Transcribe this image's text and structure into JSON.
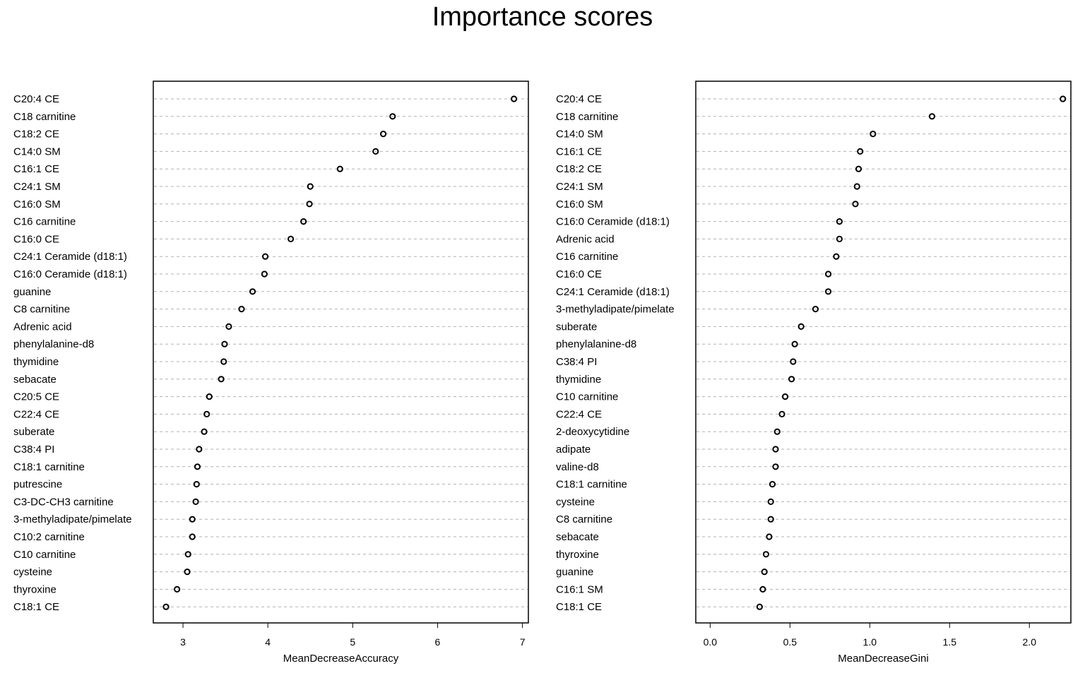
{
  "title": "Importance scores",
  "chart_data": [
    {
      "type": "scatter",
      "subtype": "dotchart",
      "xlabel": "MeanDecreaseAccuracy",
      "xlim": [
        2.65,
        7.07
      ],
      "xticks": [
        3,
        4,
        5,
        6,
        7
      ],
      "categories": [
        "C20:4 CE",
        "C18 carnitine",
        "C18:2 CE",
        "C14:0 SM",
        "C16:1 CE",
        "C24:1 SM",
        "C16:0 SM",
        "C16 carnitine",
        "C16:0 CE",
        "C24:1 Ceramide (d18:1)",
        "C16:0 Ceramide (d18:1)",
        "guanine",
        "C8 carnitine",
        "Adrenic acid",
        "phenylalanine-d8",
        "thymidine",
        "sebacate",
        "C20:5 CE",
        "C22:4 CE",
        "suberate",
        "C38:4 PI",
        "C18:1 carnitine",
        "putrescine",
        "C3-DC-CH3 carnitine",
        "3-methyladipate/pimelate",
        "C10:2 carnitine",
        "C10 carnitine",
        "cysteine",
        "thyroxine",
        "C18:1 CE"
      ],
      "values": [
        6.9,
        5.47,
        5.36,
        5.27,
        4.85,
        4.5,
        4.49,
        4.42,
        4.27,
        3.97,
        3.96,
        3.82,
        3.69,
        3.54,
        3.49,
        3.48,
        3.45,
        3.31,
        3.28,
        3.25,
        3.19,
        3.17,
        3.16,
        3.15,
        3.11,
        3.11,
        3.06,
        3.05,
        2.93,
        2.8
      ],
      "grid": "dashed horizontal lines"
    },
    {
      "type": "scatter",
      "subtype": "dotchart",
      "xlabel": "MeanDecreaseGini",
      "xlim": [
        -0.09,
        2.26
      ],
      "xticks": [
        "0.0",
        "0.5",
        "1.0",
        "1.5",
        "2.0"
      ],
      "categories": [
        "C20:4 CE",
        "C18 carnitine",
        "C14:0 SM",
        "C16:1 CE",
        "C18:2 CE",
        "C24:1 SM",
        "C16:0 SM",
        "C16:0 Ceramide (d18:1)",
        "Adrenic acid",
        "C16 carnitine",
        "C16:0 CE",
        "C24:1 Ceramide (d18:1)",
        "3-methyladipate/pimelate",
        "suberate",
        "phenylalanine-d8",
        "C38:4 PI",
        "thymidine",
        "C10 carnitine",
        "C22:4 CE",
        "2-deoxycytidine",
        "adipate",
        "valine-d8",
        "C18:1 carnitine",
        "cysteine",
        "C8 carnitine",
        "sebacate",
        "thyroxine",
        "guanine",
        "C16:1 SM",
        "C18:1 CE"
      ],
      "values": [
        2.21,
        1.39,
        1.02,
        0.94,
        0.93,
        0.92,
        0.91,
        0.81,
        0.81,
        0.79,
        0.74,
        0.74,
        0.66,
        0.57,
        0.53,
        0.52,
        0.51,
        0.47,
        0.45,
        0.42,
        0.41,
        0.41,
        0.39,
        0.38,
        0.38,
        0.37,
        0.35,
        0.34,
        0.33,
        0.31
      ],
      "grid": "dashed horizontal lines"
    }
  ]
}
